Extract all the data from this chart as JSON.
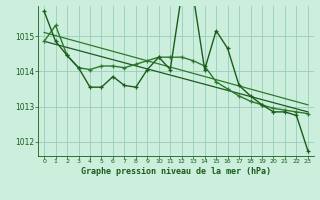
{
  "line1_jagged": {
    "x": [
      0,
      1,
      2,
      3,
      4,
      5,
      6,
      7,
      8,
      9,
      10,
      11,
      12,
      13,
      14,
      15,
      16,
      17,
      18,
      19,
      20,
      21,
      22,
      23
    ],
    "y": [
      1015.7,
      1014.85,
      1014.45,
      1014.1,
      1013.55,
      1013.55,
      1013.85,
      1013.6,
      1013.55,
      1014.05,
      1014.4,
      1014.05,
      1016.2,
      1016.15,
      1014.05,
      1015.15,
      1014.65,
      1013.6,
      1013.3,
      1013.05,
      1012.85,
      1012.85,
      1012.75,
      1011.75
    ],
    "color": "#1a5c1a",
    "linewidth": 1.0,
    "marker": "+"
  },
  "line2_smooth": {
    "x": [
      0,
      1,
      2,
      3,
      4,
      5,
      6,
      7,
      8,
      9,
      10,
      11,
      12,
      13,
      14,
      15,
      16,
      17,
      18,
      19,
      20,
      21,
      22,
      23
    ],
    "y": [
      1014.85,
      1015.3,
      1014.45,
      1014.1,
      1014.05,
      1014.15,
      1014.15,
      1014.1,
      1014.2,
      1014.3,
      1014.4,
      1014.4,
      1014.4,
      1014.3,
      1014.15,
      1013.7,
      1013.5,
      1013.3,
      1013.15,
      1013.05,
      1012.95,
      1012.9,
      1012.85,
      1012.8
    ],
    "color": "#2d7a2d",
    "linewidth": 1.0,
    "marker": "+"
  },
  "trend1": {
    "x": [
      0,
      23
    ],
    "y": [
      1015.1,
      1013.05
    ],
    "color": "#2d7a2d",
    "linewidth": 0.9
  },
  "trend2": {
    "x": [
      0,
      23
    ],
    "y": [
      1014.85,
      1012.85
    ],
    "color": "#1a5c1a",
    "linewidth": 0.9
  },
  "background_color": "#cceedd",
  "grid_color": "#99ccbb",
  "text_color": "#1a5c1a",
  "xlabel": "Graphe pression niveau de la mer (hPa)",
  "xlim": [
    -0.5,
    23.5
  ],
  "ylim": [
    1011.6,
    1015.85
  ],
  "yticks": [
    1012,
    1013,
    1014,
    1015
  ],
  "xticks": [
    0,
    1,
    2,
    3,
    4,
    5,
    6,
    7,
    8,
    9,
    10,
    11,
    12,
    13,
    14,
    15,
    16,
    17,
    18,
    19,
    20,
    21,
    22,
    23
  ]
}
